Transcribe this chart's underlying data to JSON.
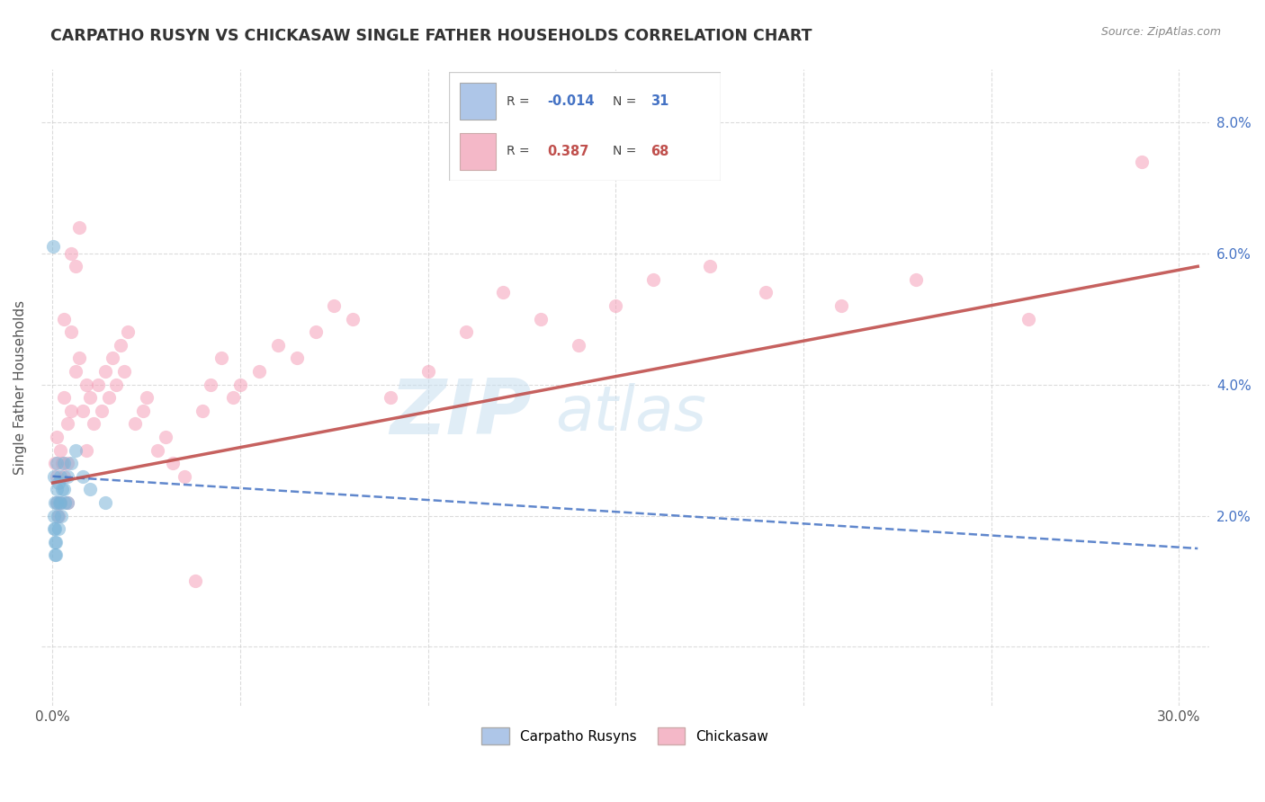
{
  "title": "CARPATHO RUSYN VS CHICKASAW SINGLE FATHER HOUSEHOLDS CORRELATION CHART",
  "source": "Source: ZipAtlas.com",
  "ylabel": "Single Father Households",
  "xlim": [
    -0.003,
    0.308
  ],
  "ylim": [
    -0.009,
    0.088
  ],
  "x_ticks": [
    0.0,
    0.05,
    0.1,
    0.15,
    0.2,
    0.25,
    0.3
  ],
  "x_tick_labels": [
    "0.0%",
    "",
    "",
    "",
    "",
    "",
    "30.0%"
  ],
  "y_ticks": [
    0.0,
    0.02,
    0.04,
    0.06,
    0.08
  ],
  "y_tick_labels_right": [
    "",
    "2.0%",
    "4.0%",
    "6.0%",
    "8.0%"
  ],
  "blue_color": "#7ab4d8",
  "pink_color": "#f5a0b8",
  "blue_line_color": "#4472c4",
  "pink_line_color": "#c0504d",
  "blue_legend_color": "#aec6e8",
  "pink_legend_color": "#f4b8c8",
  "blue_R": "-0.014",
  "blue_N": "31",
  "pink_R": "0.387",
  "pink_N": "68",
  "legend_labels": [
    "Carpatho Rusyns",
    "Chickasaw"
  ],
  "watermark_line1": "ZIP",
  "watermark_line2": "atlas",
  "watermark_color": "#c8dff0",
  "grid_color": "#cccccc",
  "background": "#ffffff",
  "title_color": "#333333",
  "source_color": "#888888",
  "label_color": "#555555",
  "right_tick_color": "#4472c4",
  "figsize": [
    14.06,
    8.92
  ],
  "dpi": 100,
  "blue_x": [
    0.0003,
    0.0003,
    0.0004,
    0.0005,
    0.0005,
    0.0006,
    0.0007,
    0.0008,
    0.0009,
    0.001,
    0.001,
    0.0012,
    0.0013,
    0.0015,
    0.0016,
    0.0018,
    0.002,
    0.002,
    0.0022,
    0.0025,
    0.003,
    0.003,
    0.0032,
    0.004,
    0.004,
    0.005,
    0.006,
    0.008,
    0.01,
    0.014,
    0.0002
  ],
  "blue_y": [
    0.026,
    0.02,
    0.018,
    0.016,
    0.014,
    0.022,
    0.018,
    0.016,
    0.014,
    0.028,
    0.024,
    0.022,
    0.02,
    0.018,
    0.025,
    0.022,
    0.026,
    0.022,
    0.02,
    0.024,
    0.028,
    0.024,
    0.022,
    0.026,
    0.022,
    0.028,
    0.03,
    0.026,
    0.024,
    0.022,
    0.061
  ],
  "pink_x": [
    0.0005,
    0.001,
    0.001,
    0.0012,
    0.0015,
    0.002,
    0.002,
    0.0025,
    0.003,
    0.003,
    0.003,
    0.004,
    0.004,
    0.004,
    0.005,
    0.005,
    0.005,
    0.006,
    0.006,
    0.007,
    0.007,
    0.008,
    0.009,
    0.009,
    0.01,
    0.011,
    0.012,
    0.013,
    0.014,
    0.015,
    0.016,
    0.017,
    0.018,
    0.019,
    0.02,
    0.022,
    0.024,
    0.025,
    0.028,
    0.03,
    0.032,
    0.035,
    0.038,
    0.04,
    0.042,
    0.045,
    0.048,
    0.05,
    0.055,
    0.06,
    0.065,
    0.07,
    0.075,
    0.08,
    0.09,
    0.1,
    0.11,
    0.12,
    0.13,
    0.14,
    0.15,
    0.16,
    0.175,
    0.19,
    0.21,
    0.23,
    0.26,
    0.29
  ],
  "pink_y": [
    0.028,
    0.032,
    0.022,
    0.026,
    0.02,
    0.03,
    0.022,
    0.028,
    0.05,
    0.038,
    0.026,
    0.034,
    0.028,
    0.022,
    0.06,
    0.048,
    0.036,
    0.058,
    0.042,
    0.064,
    0.044,
    0.036,
    0.04,
    0.03,
    0.038,
    0.034,
    0.04,
    0.036,
    0.042,
    0.038,
    0.044,
    0.04,
    0.046,
    0.042,
    0.048,
    0.034,
    0.036,
    0.038,
    0.03,
    0.032,
    0.028,
    0.026,
    0.01,
    0.036,
    0.04,
    0.044,
    0.038,
    0.04,
    0.042,
    0.046,
    0.044,
    0.048,
    0.052,
    0.05,
    0.038,
    0.042,
    0.048,
    0.054,
    0.05,
    0.046,
    0.052,
    0.056,
    0.058,
    0.054,
    0.052,
    0.056,
    0.05,
    0.074
  ],
  "pink_trend_x0": 0.0,
  "pink_trend_x1": 0.305,
  "pink_trend_y0": 0.025,
  "pink_trend_y1": 0.058,
  "blue_trend_x0": 0.0,
  "blue_trend_x1": 0.305,
  "blue_trend_y0": 0.026,
  "blue_trend_y1": 0.015
}
